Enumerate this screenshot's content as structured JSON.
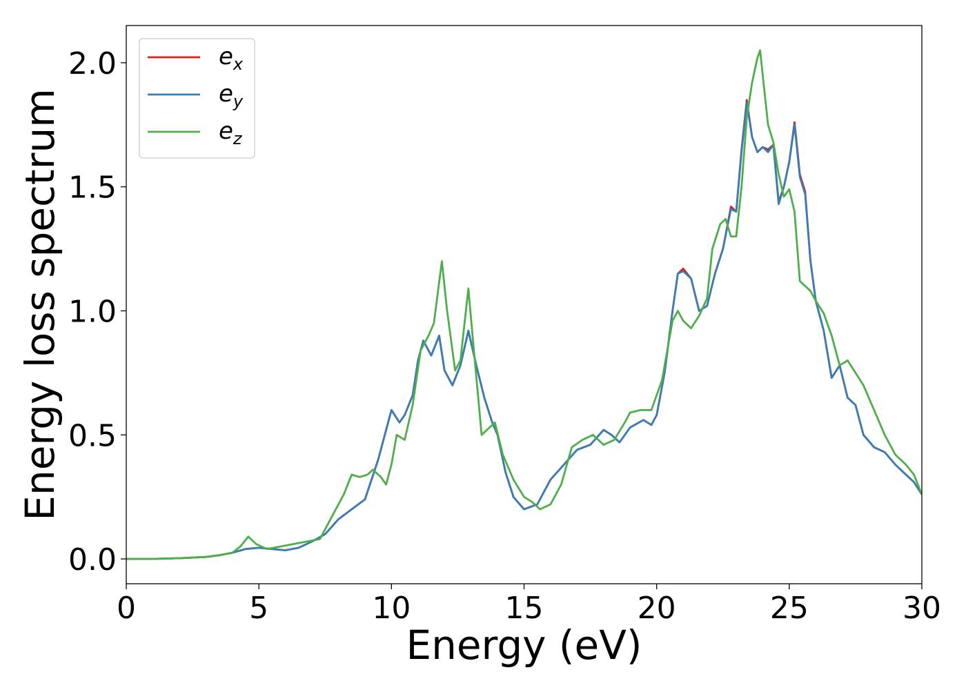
{
  "chart_data": {
    "type": "line",
    "title": "",
    "xlabel": "Energy (eV)",
    "ylabel": "Energy loss spectrum",
    "xlim": [
      0,
      30
    ],
    "ylim": [
      -0.1,
      2.15
    ],
    "xticks": [
      0,
      5,
      10,
      15,
      20,
      25,
      30
    ],
    "yticks": [
      0.0,
      0.5,
      1.0,
      1.5,
      2.0
    ],
    "xtick_labels": [
      "0",
      "5",
      "10",
      "15",
      "20",
      "25",
      "30"
    ],
    "ytick_labels": [
      "0.0",
      "0.5",
      "1.0",
      "1.5",
      "2.0"
    ],
    "grid": false,
    "legend_position": "top-left",
    "series": [
      {
        "name": "e_x",
        "legend_base": "e",
        "legend_sub": "x",
        "color": "#e41a1c",
        "x": [
          0,
          1,
          2,
          3,
          3.5,
          4,
          4.5,
          5,
          5.5,
          6,
          6.5,
          7,
          7.5,
          8,
          8.5,
          9,
          9.5,
          9.8,
          10,
          10.3,
          10.5,
          10.8,
          11,
          11.2,
          11.5,
          11.8,
          12,
          12.3,
          12.6,
          12.9,
          13.2,
          13.5,
          13.8,
          14,
          14.3,
          14.6,
          15,
          15.5,
          16,
          16.5,
          17,
          17.5,
          18,
          18.3,
          18.6,
          19,
          19.5,
          19.8,
          20,
          20.3,
          20.6,
          20.8,
          21,
          21.3,
          21.6,
          21.9,
          22.2,
          22.5,
          22.8,
          23,
          23.2,
          23.4,
          23.6,
          23.8,
          24,
          24.2,
          24.4,
          24.6,
          24.8,
          25,
          25.2,
          25.4,
          25.6,
          25.8,
          26,
          26.3,
          26.6,
          26.9,
          27.2,
          27.5,
          27.8,
          28.2,
          28.6,
          29,
          29.4,
          29.7,
          30
        ],
        "y": [
          0,
          0,
          0.003,
          0.008,
          0.015,
          0.025,
          0.04,
          0.045,
          0.04,
          0.035,
          0.045,
          0.07,
          0.1,
          0.16,
          0.2,
          0.24,
          0.4,
          0.52,
          0.6,
          0.55,
          0.58,
          0.66,
          0.8,
          0.88,
          0.82,
          0.9,
          0.76,
          0.7,
          0.78,
          0.92,
          0.78,
          0.65,
          0.55,
          0.5,
          0.35,
          0.25,
          0.2,
          0.22,
          0.32,
          0.38,
          0.44,
          0.46,
          0.52,
          0.5,
          0.47,
          0.53,
          0.56,
          0.54,
          0.58,
          0.75,
          1.0,
          1.15,
          1.17,
          1.13,
          1.0,
          1.02,
          1.15,
          1.25,
          1.42,
          1.4,
          1.65,
          1.85,
          1.7,
          1.64,
          1.66,
          1.65,
          1.67,
          1.44,
          1.5,
          1.6,
          1.76,
          1.55,
          1.48,
          1.2,
          1.04,
          0.92,
          0.73,
          0.78,
          0.65,
          0.62,
          0.5,
          0.45,
          0.43,
          0.38,
          0.34,
          0.31,
          0.26
        ]
      },
      {
        "name": "e_y",
        "legend_base": "e",
        "legend_sub": "y",
        "color": "#377eb8",
        "x": [
          0,
          1,
          2,
          3,
          3.5,
          4,
          4.5,
          5,
          5.5,
          6,
          6.5,
          7,
          7.5,
          8,
          8.5,
          9,
          9.5,
          9.8,
          10,
          10.3,
          10.5,
          10.8,
          11,
          11.2,
          11.5,
          11.8,
          12,
          12.3,
          12.6,
          12.9,
          13.2,
          13.5,
          13.8,
          14,
          14.3,
          14.6,
          15,
          15.5,
          16,
          16.5,
          17,
          17.5,
          18,
          18.3,
          18.6,
          19,
          19.5,
          19.8,
          20,
          20.3,
          20.6,
          20.8,
          21,
          21.3,
          21.6,
          21.9,
          22.2,
          22.5,
          22.8,
          23,
          23.2,
          23.4,
          23.6,
          23.8,
          24,
          24.2,
          24.4,
          24.6,
          24.8,
          25,
          25.2,
          25.4,
          25.6,
          25.8,
          26,
          26.3,
          26.6,
          26.9,
          27.2,
          27.5,
          27.8,
          28.2,
          28.6,
          29,
          29.4,
          29.7,
          30
        ],
        "y": [
          0,
          0,
          0.003,
          0.008,
          0.015,
          0.025,
          0.04,
          0.045,
          0.04,
          0.035,
          0.045,
          0.07,
          0.1,
          0.16,
          0.2,
          0.24,
          0.4,
          0.52,
          0.6,
          0.55,
          0.58,
          0.66,
          0.8,
          0.88,
          0.82,
          0.9,
          0.76,
          0.7,
          0.78,
          0.92,
          0.78,
          0.65,
          0.55,
          0.5,
          0.35,
          0.25,
          0.2,
          0.22,
          0.32,
          0.38,
          0.44,
          0.46,
          0.52,
          0.5,
          0.47,
          0.53,
          0.56,
          0.54,
          0.58,
          0.75,
          1.0,
          1.15,
          1.16,
          1.13,
          1.0,
          1.02,
          1.15,
          1.25,
          1.41,
          1.4,
          1.64,
          1.84,
          1.7,
          1.64,
          1.66,
          1.64,
          1.67,
          1.43,
          1.5,
          1.6,
          1.75,
          1.54,
          1.47,
          1.2,
          1.04,
          0.92,
          0.73,
          0.78,
          0.65,
          0.62,
          0.5,
          0.45,
          0.43,
          0.38,
          0.34,
          0.31,
          0.26
        ]
      },
      {
        "name": "e_z",
        "legend_base": "e",
        "legend_sub": "z",
        "color": "#4daf4a",
        "x": [
          0,
          1,
          2,
          3,
          3.5,
          4,
          4.3,
          4.6,
          4.9,
          5.3,
          5.8,
          6.3,
          6.8,
          7.3,
          7.8,
          8.2,
          8.5,
          8.8,
          9.1,
          9.3,
          9.6,
          9.8,
          10,
          10.2,
          10.5,
          10.8,
          11.1,
          11.4,
          11.6,
          11.9,
          12.1,
          12.4,
          12.6,
          12.9,
          13.1,
          13.4,
          13.6,
          13.9,
          14.2,
          14.6,
          15,
          15.3,
          15.6,
          16,
          16.4,
          16.8,
          17.2,
          17.6,
          18,
          18.4,
          18.8,
          19,
          19.4,
          19.8,
          20.2,
          20.6,
          20.8,
          21,
          21.3,
          21.6,
          21.9,
          22.1,
          22.4,
          22.6,
          22.8,
          23,
          23.2,
          23.4,
          23.6,
          23.8,
          23.9,
          24,
          24.2,
          24.4,
          24.6,
          24.8,
          25,
          25.2,
          25.4,
          25.6,
          25.8,
          26,
          26.3,
          26.6,
          26.9,
          27.2,
          27.5,
          27.8,
          28.2,
          28.6,
          29,
          29.4,
          29.7,
          30
        ],
        "y": [
          0,
          0,
          0.003,
          0.008,
          0.015,
          0.025,
          0.05,
          0.09,
          0.06,
          0.04,
          0.05,
          0.06,
          0.07,
          0.08,
          0.18,
          0.26,
          0.34,
          0.33,
          0.34,
          0.36,
          0.33,
          0.3,
          0.38,
          0.5,
          0.48,
          0.62,
          0.84,
          0.9,
          0.95,
          1.2,
          1.0,
          0.76,
          0.8,
          1.09,
          0.85,
          0.5,
          0.52,
          0.55,
          0.42,
          0.32,
          0.25,
          0.23,
          0.2,
          0.22,
          0.3,
          0.45,
          0.48,
          0.5,
          0.46,
          0.48,
          0.55,
          0.59,
          0.6,
          0.6,
          0.72,
          0.96,
          1.0,
          0.96,
          0.93,
          0.98,
          1.05,
          1.25,
          1.35,
          1.37,
          1.3,
          1.3,
          1.5,
          1.78,
          1.92,
          2.02,
          2.05,
          1.95,
          1.75,
          1.68,
          1.55,
          1.46,
          1.49,
          1.4,
          1.12,
          1.1,
          1.08,
          1.04,
          0.99,
          0.9,
          0.78,
          0.8,
          0.75,
          0.7,
          0.6,
          0.5,
          0.42,
          0.38,
          0.34,
          0.26
        ]
      }
    ]
  }
}
